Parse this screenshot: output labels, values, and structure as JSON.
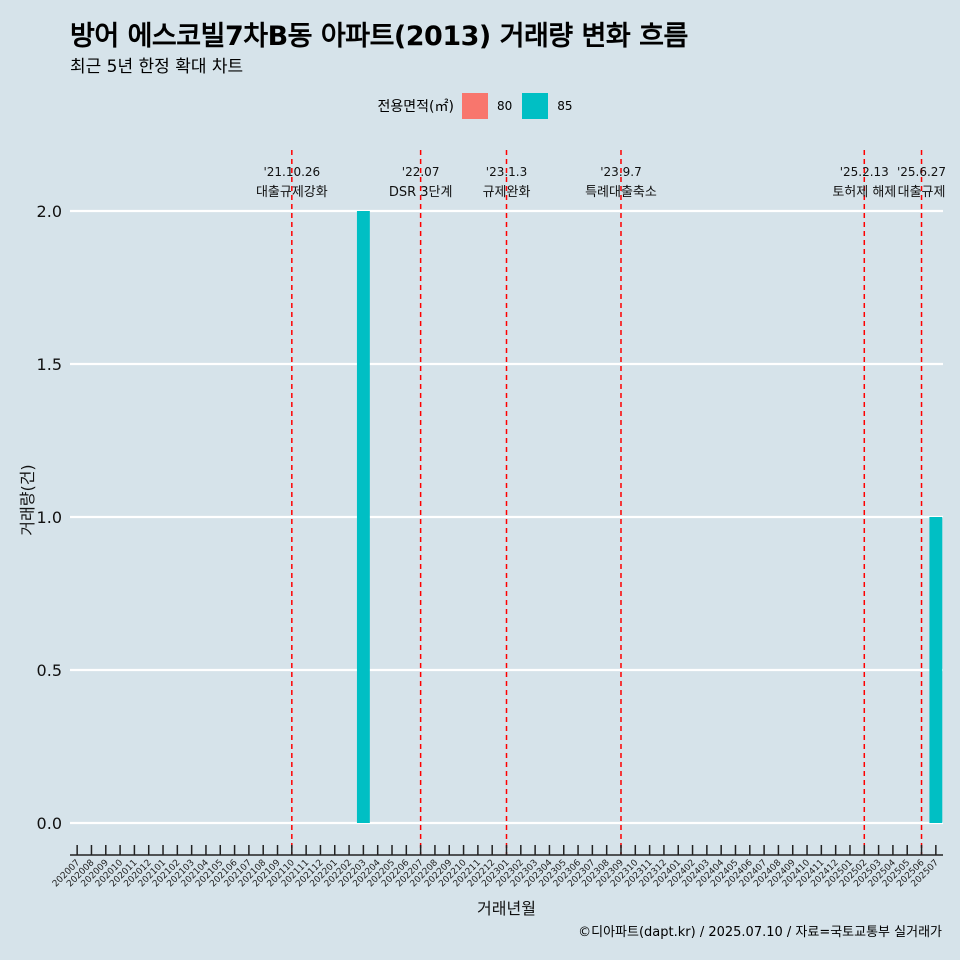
{
  "header": {
    "title": "방어 에스코빌7차B동 아파트(2013) 거래량 변화 흐름",
    "subtitle": "최근 5년 한정 확대 차트"
  },
  "legend": {
    "title": "전용면적(㎡)",
    "items": [
      {
        "label": "80",
        "color": "#f8766d"
      },
      {
        "label": "85",
        "color": "#00bfc4"
      }
    ]
  },
  "caption": "©디아파트(dapt.kr) / 2025.07.10 / 자료=국토교통부 실거래가",
  "chart_data": {
    "type": "bar",
    "xlabel": "거래년월",
    "ylabel": "거래량(건)",
    "ylim": [
      0,
      2.2
    ],
    "yticks": [
      0.0,
      0.5,
      1.0,
      1.5,
      2.0
    ],
    "ytick_labels": [
      "0.0",
      "0.5",
      "1.0",
      "1.5",
      "2.0"
    ],
    "grid": true,
    "legend_position": "top",
    "categories": [
      "202007",
      "202008",
      "202009",
      "202010",
      "202011",
      "202012",
      "202101",
      "202102",
      "202103",
      "202104",
      "202105",
      "202106",
      "202107",
      "202108",
      "202109",
      "202110",
      "202111",
      "202112",
      "202201",
      "202202",
      "202203",
      "202204",
      "202205",
      "202206",
      "202207",
      "202208",
      "202209",
      "202210",
      "202211",
      "202212",
      "202301",
      "202302",
      "202303",
      "202304",
      "202305",
      "202306",
      "202307",
      "202308",
      "202309",
      "202310",
      "202311",
      "202312",
      "202401",
      "202402",
      "202403",
      "202404",
      "202405",
      "202406",
      "202407",
      "202408",
      "202409",
      "202410",
      "202411",
      "202412",
      "202501",
      "202502",
      "202503",
      "202504",
      "202505",
      "202506",
      "202507"
    ],
    "series": [
      {
        "name": "80",
        "color": "#f8766d",
        "values": {}
      },
      {
        "name": "85",
        "color": "#00bfc4",
        "values": {
          "202203": 2,
          "202507": 1
        }
      }
    ],
    "events": [
      {
        "date": "'21.10.26",
        "label": "대출규제강화",
        "x": "202110"
      },
      {
        "date": "'22.07",
        "label": "DSR 3단계",
        "x": "202207"
      },
      {
        "date": "'23.1.3",
        "label": "규제완화",
        "x": "202301"
      },
      {
        "date": "'23.9.7",
        "label": "특례대출축소",
        "x": "202309"
      },
      {
        "date": "'25.2.13",
        "label": "토허제 해제",
        "x": "202502"
      },
      {
        "date": "'25.6.27",
        "label": "대출규제",
        "x": "202506"
      }
    ],
    "event_color": "#ff0000"
  }
}
